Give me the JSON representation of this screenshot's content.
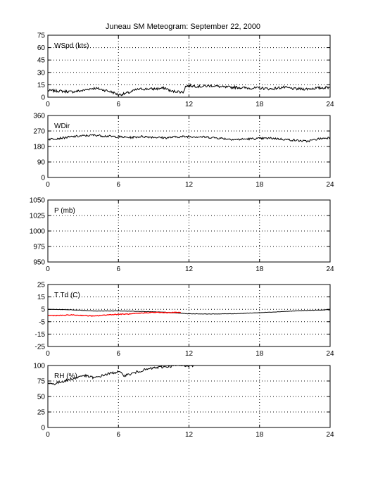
{
  "title": "Juneau SM Meteogram: September 22, 2000",
  "chart_data": [
    {
      "type": "line",
      "label": "WSpd (kts)",
      "xlim": [
        0,
        24
      ],
      "xticks": [
        0,
        6,
        12,
        18,
        24
      ],
      "ylim": [
        0,
        75
      ],
      "yticks": [
        0,
        15,
        30,
        45,
        60,
        75
      ],
      "grid": true,
      "series": [
        {
          "color": "#000000",
          "noise": 1.6,
          "x": [
            0,
            1,
            2,
            3,
            3.5,
            4,
            5,
            5.5,
            6,
            6.5,
            7,
            7.5,
            8,
            9,
            10,
            10.5,
            11,
            11.5,
            11.7,
            12,
            13,
            14,
            15,
            16,
            17,
            18,
            19,
            20,
            21,
            22,
            23,
            24
          ],
          "y": [
            8,
            7.5,
            6.5,
            8,
            10,
            11,
            8,
            6,
            3,
            4,
            6,
            9,
            10,
            10,
            11,
            7,
            7,
            6,
            13,
            14,
            13,
            14,
            12,
            12,
            11,
            11,
            10,
            12,
            10,
            10,
            11,
            12
          ]
        }
      ]
    },
    {
      "type": "line",
      "label": "WDir",
      "xlim": [
        0,
        24
      ],
      "xticks": [
        0,
        6,
        12,
        18,
        24
      ],
      "ylim": [
        0,
        360
      ],
      "yticks": [
        0,
        90,
        180,
        270,
        360
      ],
      "grid": true,
      "series": [
        {
          "color": "#000000",
          "noise": 6,
          "x": [
            0,
            1,
            2,
            3,
            4,
            5,
            6,
            7,
            8,
            9,
            10,
            11,
            12,
            13,
            14,
            15,
            16,
            17,
            18,
            19,
            20,
            21,
            22,
            23,
            24
          ],
          "y": [
            222,
            228,
            236,
            242,
            246,
            240,
            236,
            232,
            238,
            234,
            230,
            236,
            238,
            236,
            232,
            226,
            220,
            224,
            226,
            228,
            222,
            216,
            210,
            224,
            232
          ]
        }
      ]
    },
    {
      "type": "line",
      "label": "P (mb)",
      "xlim": [
        0,
        24
      ],
      "xticks": [
        0,
        6,
        12,
        18,
        24
      ],
      "ylim": [
        950,
        1050
      ],
      "yticks": [
        950,
        975,
        1000,
        1025,
        1050
      ],
      "grid": true,
      "series": []
    },
    {
      "type": "line",
      "label": "T Td (C)",
      "xlim": [
        0,
        24
      ],
      "xticks": [
        0,
        6,
        12,
        18,
        24
      ],
      "ylim": [
        -25,
        25
      ],
      "yticks": [
        -25,
        -15,
        -5,
        5,
        15,
        25
      ],
      "grid": true,
      "series": [
        {
          "color": "#000000",
          "noise": 0.15,
          "x": [
            0,
            2,
            4,
            6,
            8,
            10,
            12,
            14,
            16,
            18,
            20,
            22,
            24
          ],
          "y": [
            5,
            4.6,
            3.6,
            3.7,
            3.3,
            2.6,
            1.4,
            1.2,
            1.5,
            2.3,
            3.2,
            4.1,
            4.6
          ]
        },
        {
          "color": "#ff0000",
          "noise": 0.3,
          "x": [
            0,
            1,
            2,
            3,
            4,
            5,
            6,
            7,
            8,
            9,
            10,
            11,
            11.3
          ],
          "y": [
            0,
            0,
            0.5,
            0,
            -0.5,
            0.5,
            1,
            1.2,
            2,
            2.5,
            2.3,
            2.5,
            2.4
          ]
        }
      ]
    },
    {
      "type": "line",
      "label": "RH (%)",
      "xlim": [
        0,
        24
      ],
      "xticks": [
        0,
        6,
        12,
        18,
        24
      ],
      "ylim": [
        0,
        100
      ],
      "yticks": [
        0,
        25,
        50,
        75,
        100
      ],
      "grid": true,
      "series": [
        {
          "color": "#000000",
          "noise": 2,
          "x": [
            0,
            0.5,
            1,
            2,
            3,
            4,
            5,
            6,
            6.5,
            7,
            8,
            9,
            10,
            11,
            11.5,
            12,
            12.5
          ],
          "y": [
            72,
            70,
            73,
            78,
            84,
            80,
            86,
            90,
            84,
            86,
            92,
            96,
            98,
            100,
            100,
            100,
            100
          ]
        }
      ]
    }
  ]
}
